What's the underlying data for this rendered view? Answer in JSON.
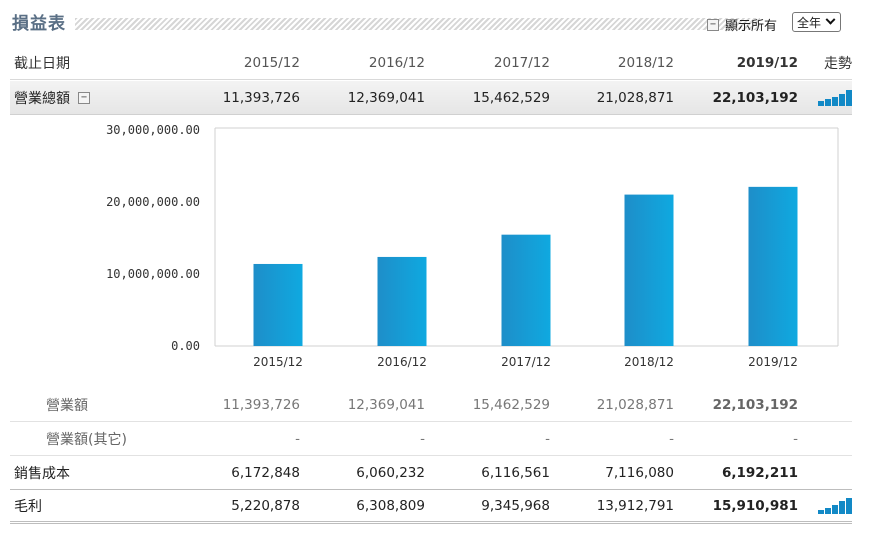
{
  "header": {
    "title": "損益表",
    "show_all_toggle": "−",
    "show_all_label": "顯示所有",
    "period_select": "全年"
  },
  "table": {
    "date_label": "截止日期",
    "trend_label": "走勢",
    "periods": [
      "2015/12",
      "2016/12",
      "2017/12",
      "2018/12",
      "2019/12"
    ],
    "rows": {
      "revenue_total": {
        "label": "營業總額",
        "toggle": "−",
        "values": [
          "11,393,726",
          "12,369,041",
          "15,462,529",
          "21,028,871",
          "22,103,192"
        ]
      },
      "revenue": {
        "label": "營業額",
        "values": [
          "11,393,726",
          "12,369,041",
          "15,462,529",
          "21,028,871",
          "22,103,192"
        ]
      },
      "revenue_other": {
        "label": "營業額(其它)",
        "values": [
          "-",
          "-",
          "-",
          "-",
          "-"
        ]
      },
      "cost_of_sales": {
        "label": "銷售成本",
        "values": [
          "6,172,848",
          "6,060,232",
          "6,116,561",
          "7,116,080",
          "6,192,211"
        ]
      },
      "gross_profit": {
        "label": "毛利",
        "values": [
          "5,220,878",
          "6,308,809",
          "9,345,968",
          "13,912,791",
          "15,910,981"
        ]
      }
    },
    "spark_color": "#1289c6"
  },
  "chart_data": {
    "type": "bar",
    "categories": [
      "2015/12",
      "2016/12",
      "2017/12",
      "2018/12",
      "2019/12"
    ],
    "values": [
      11393726,
      12369041,
      15462529,
      21028871,
      22103192
    ],
    "title": "",
    "xlabel": "",
    "ylabel": "",
    "ylim": [
      0,
      30000000
    ],
    "yticks": [
      "0.00",
      "10,000,000.00",
      "20,000,000.00",
      "30,000,000.00"
    ],
    "grid": false,
    "bar_color_top": "#1e8ec9",
    "bar_color": "#0fa9e0"
  }
}
